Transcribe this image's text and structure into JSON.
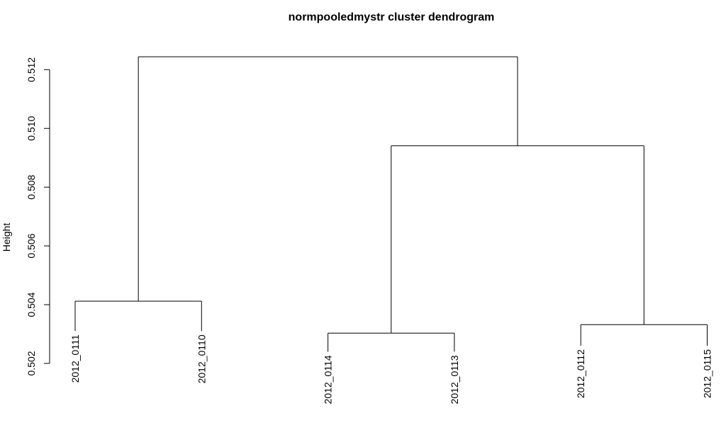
{
  "chart_data": {
    "type": "dendrogram",
    "title": "normpooledmystr cluster dendrogram",
    "ylabel": "Height",
    "xlabel": "",
    "ylim": [
      0.502,
      0.5129
    ],
    "yticks": [
      0.502,
      0.504,
      0.506,
      0.508,
      0.51,
      0.512
    ],
    "ytick_labels": [
      "0.502",
      "0.504",
      "0.506",
      "0.508",
      "0.510",
      "0.512"
    ],
    "leaves": [
      "2012_0111",
      "2012_0110",
      "2012_0114",
      "2012_0113",
      "2012_0112",
      "2012_0115"
    ],
    "leaf_heights": [
      0.5031,
      0.5031,
      0.5024,
      0.5024,
      0.5026,
      0.5026
    ],
    "merges": [
      {
        "left": "2012_0111",
        "right": "2012_0110",
        "height": 0.50412
      },
      {
        "left": "2012_0114",
        "right": "2012_0113",
        "height": 0.50303
      },
      {
        "left": "2012_0112",
        "right": "2012_0115",
        "height": 0.50332
      },
      {
        "left": "(2012_0114, 2012_0113)",
        "right": "(2012_0112, 2012_0115)",
        "height": 0.50941
      },
      {
        "left": "(2012_0111, 2012_0110)",
        "right": "((2012_0114, 2012_0113), (2012_0112, 2012_0115))",
        "height": 0.51244
      }
    ],
    "grid": false,
    "color": "#000000"
  }
}
